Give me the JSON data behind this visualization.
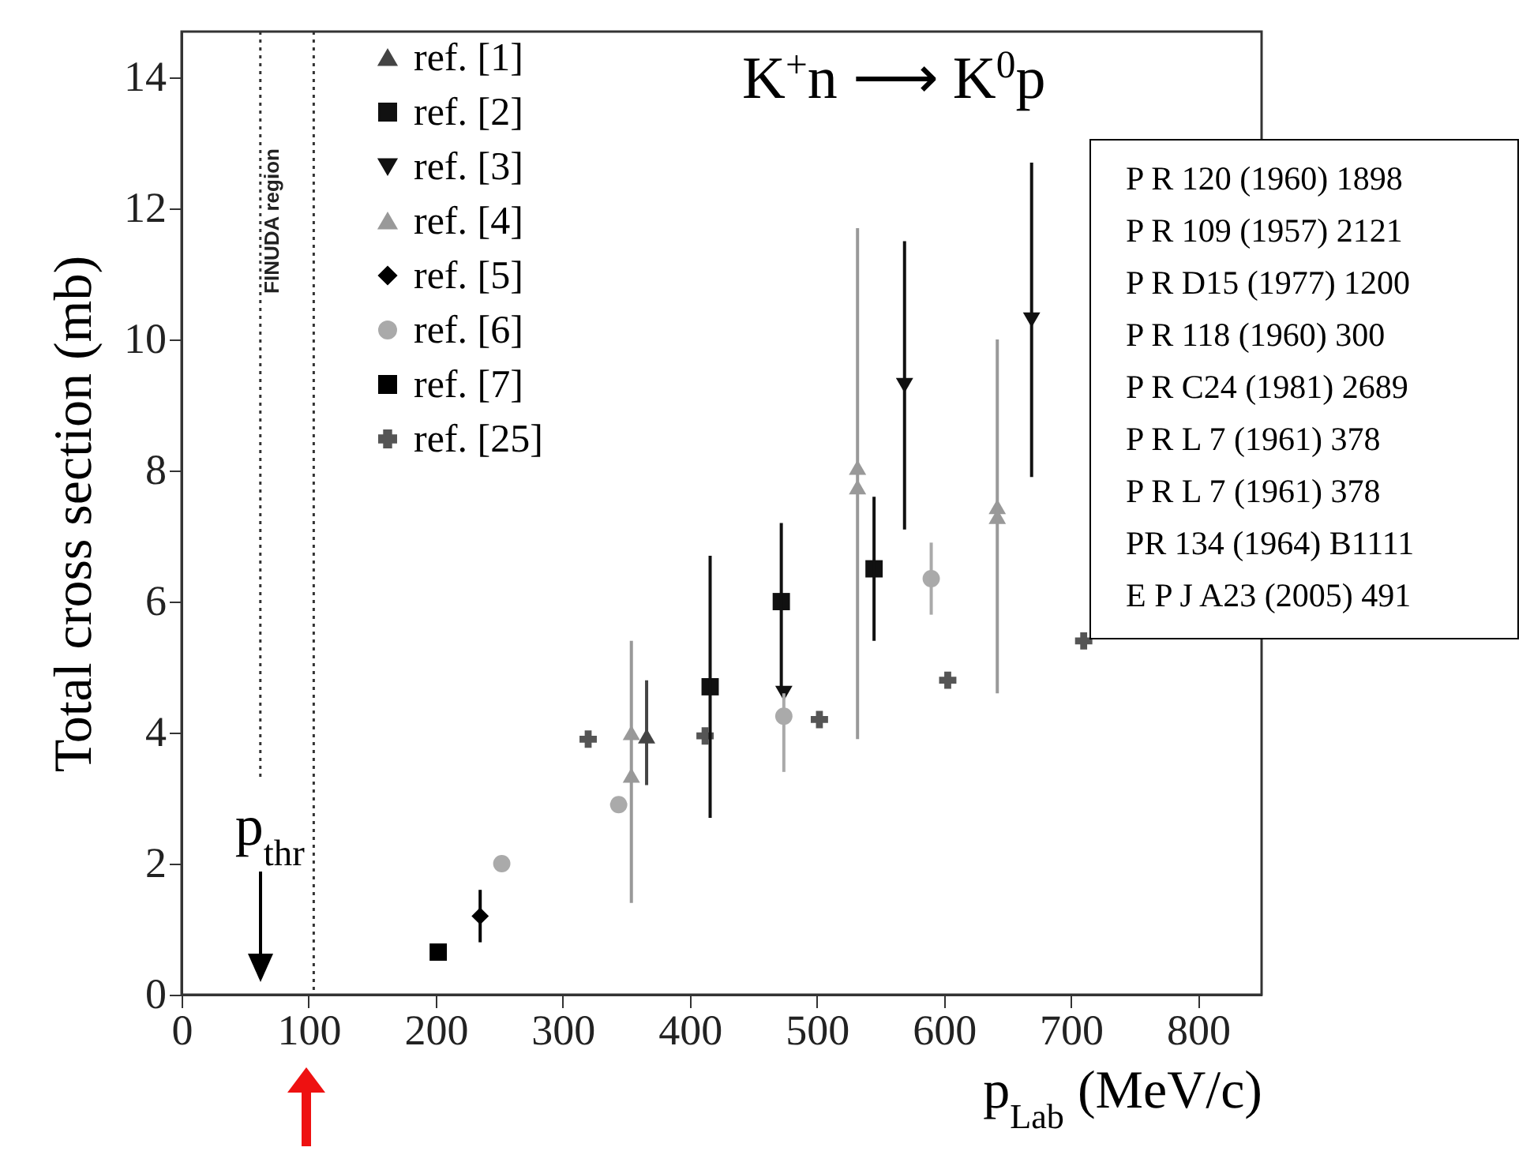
{
  "chart_data": {
    "type": "scatter",
    "xlabel": "p$_{Lab}$ (MeV/c)",
    "ylabel": "Total cross section (mb)",
    "xlim": [
      0,
      850
    ],
    "xticks": [
      0,
      100,
      200,
      300,
      400,
      500,
      600,
      700,
      800
    ],
    "ylim": [
      0,
      14.7
    ],
    "yticks": [
      0,
      2,
      4,
      6,
      8,
      10,
      12,
      14
    ],
    "grid": false,
    "legend": "top left",
    "series": [
      {
        "name": "ref. [1]",
        "color": "#444444",
        "marker": "triangle",
        "x": [
          366
        ],
        "values": [
          3.95
        ],
        "errors": [
          [
            3.2,
            4.8
          ]
        ]
      },
      {
        "name": "ref. [2]",
        "color": "#111111",
        "marker": "square",
        "x": [
          416,
          472,
          545
        ],
        "values": [
          4.7,
          6.0,
          6.5
        ],
        "errors": [
          [
            2.7,
            6.7
          ],
          [
            4.7,
            7.2
          ],
          [
            5.4,
            7.6
          ]
        ]
      },
      {
        "name": "ref. [3]",
        "color": "#111111",
        "marker": "triangle-down",
        "x": [
          474,
          569,
          669
        ],
        "values": [
          4.6,
          9.3,
          10.3
        ],
        "errors": [
          null,
          [
            7.1,
            11.5
          ],
          [
            7.9,
            12.7
          ]
        ]
      },
      {
        "name": "ref. [4]",
        "color": "#999999",
        "marker": "triangle",
        "x": [
          354,
          354,
          532,
          532,
          642,
          642
        ],
        "values": [
          4.0,
          3.35,
          8.05,
          7.75,
          7.45,
          7.3
        ],
        "errors": [
          null,
          [
            1.4,
            5.4
          ],
          null,
          [
            3.9,
            11.7
          ],
          null,
          [
            4.6,
            10.0
          ]
        ]
      },
      {
        "name": "ref. [5]",
        "color": "#000000",
        "marker": "diamond",
        "x": [
          235
        ],
        "values": [
          1.2
        ],
        "errors": [
          [
            0.8,
            1.6
          ]
        ]
      },
      {
        "name": "ref. [6]",
        "color": "#aaaaaa",
        "marker": "circle",
        "x": [
          252,
          344,
          474,
          590
        ],
        "values": [
          2.0,
          2.9,
          4.25,
          6.35
        ],
        "errors": [
          null,
          null,
          [
            3.4,
            4.6
          ],
          [
            5.8,
            6.9
          ]
        ]
      },
      {
        "name": "ref. [7]",
        "color": "#000000",
        "marker": "square",
        "x": [
          202
        ],
        "values": [
          0.65
        ]
      },
      {
        "name": "ref. [25]",
        "color": "#555555",
        "marker": "cross",
        "x": [
          320,
          412,
          502,
          603,
          710
        ],
        "values": [
          3.9,
          3.95,
          4.2,
          4.8,
          5.4
        ]
      }
    ],
    "ref_lines": [
      {
        "axis": "x",
        "value": 62,
        "line_style": "dotted"
      },
      {
        "axis": "x",
        "value": 104,
        "label": "FINUDA region",
        "line_style": "dotted"
      }
    ],
    "annotations": [
      "K$^{+}$n ⟶ K$^{0}$p",
      "p$_{thr}$",
      "P R 120 (1960) 1898",
      "P R 109 (1957) 2121",
      "P R D15 (1977) 1200",
      "P R 118 (1960) 300",
      "P R C24 (1981) 2689",
      "P R L 7 (1961) 378",
      "P R L 7 (1961) 378",
      "PR 134 (1964) B1111",
      "E P J A23 (2005) 491"
    ]
  }
}
